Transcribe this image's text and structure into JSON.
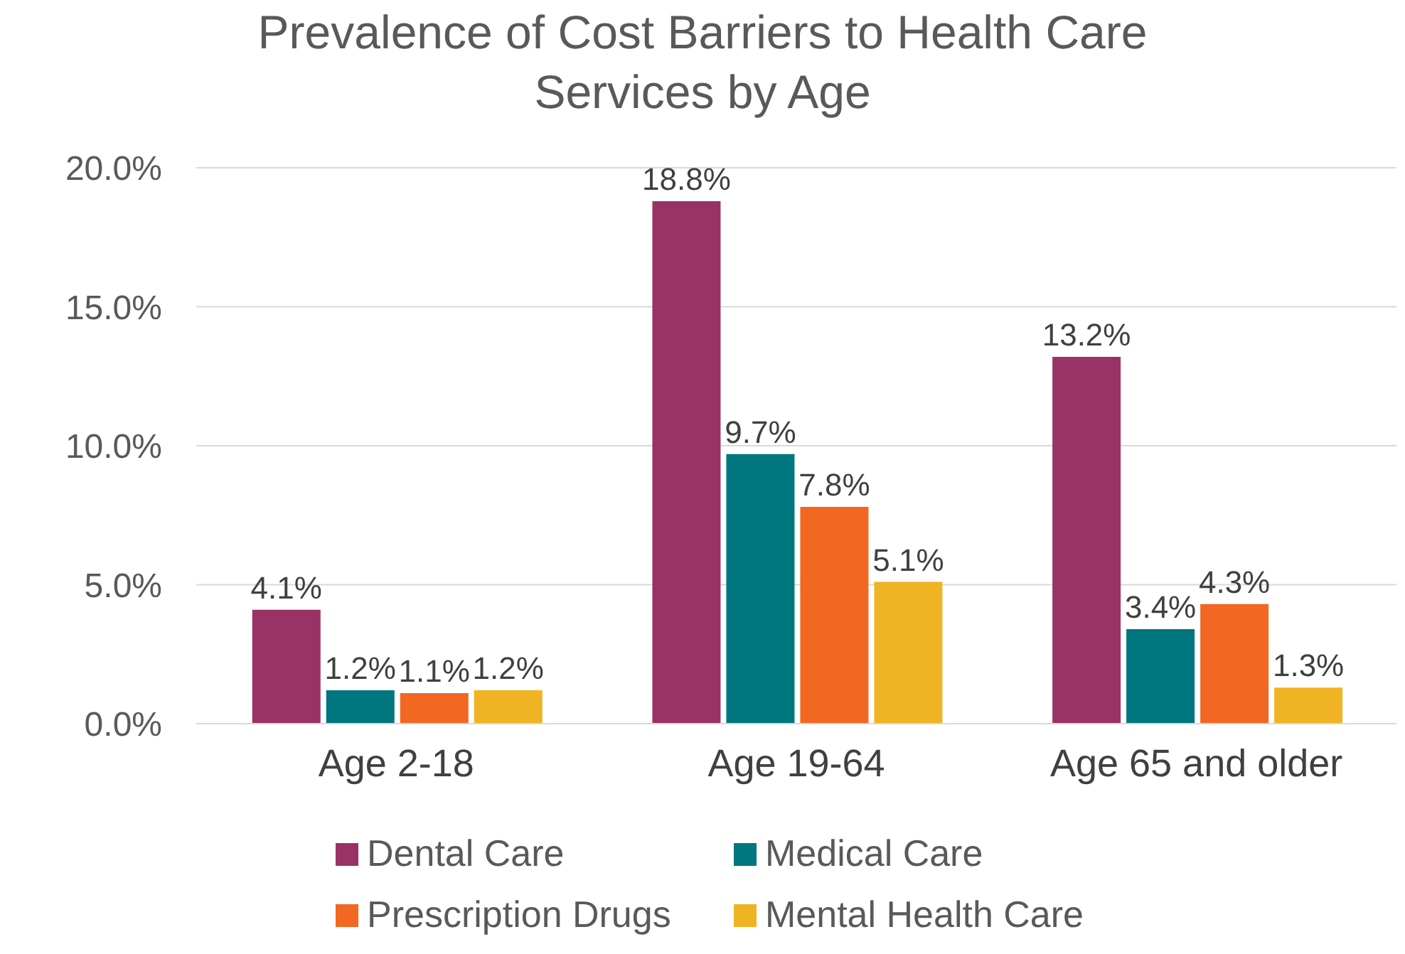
{
  "chart_data": {
    "type": "bar",
    "title": "Prevalence of Cost Barriers to Health Care Services by Age",
    "categories": [
      "Age 2-18",
      "Age 19-64",
      "Age 65 and older"
    ],
    "series": [
      {
        "name": "Dental Care",
        "color": "#993366",
        "values": [
          4.1,
          18.8,
          13.2
        ],
        "value_labels": [
          "4.1%",
          "18.8%",
          "13.2%"
        ]
      },
      {
        "name": "Medical Care",
        "color": "#00767e",
        "values": [
          1.2,
          9.7,
          3.4
        ],
        "value_labels": [
          "1.2%",
          "9.7%",
          "3.4%"
        ]
      },
      {
        "name": "Prescription Drugs",
        "color": "#f26722",
        "values": [
          1.1,
          7.8,
          4.3
        ],
        "value_labels": [
          "1.1%",
          "7.8%",
          "4.3%"
        ]
      },
      {
        "name": "Mental Health Care",
        "color": "#f0b323",
        "values": [
          1.2,
          5.1,
          1.3
        ],
        "value_labels": [
          "1.2%",
          "5.1%",
          "1.3%"
        ]
      }
    ],
    "ylim": [
      0,
      20
    ],
    "yticks": [
      {
        "value": 0,
        "label": "0.0%"
      },
      {
        "value": 5,
        "label": "5.0%"
      },
      {
        "value": 10,
        "label": "10.0%"
      },
      {
        "value": 15,
        "label": "15.0%"
      },
      {
        "value": 20,
        "label": "20.0%"
      }
    ],
    "grid": "y",
    "legend": "bottom"
  }
}
